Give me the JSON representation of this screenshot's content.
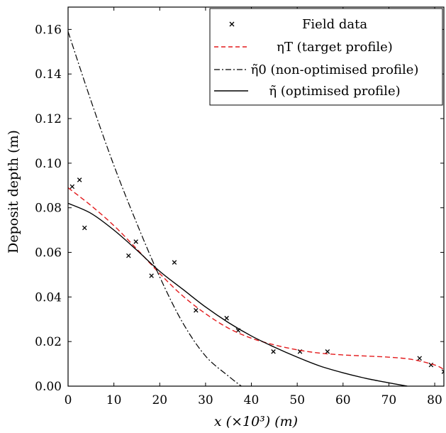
{
  "chart_data": {
    "type": "line",
    "xlabel": "x (×10³) (m)",
    "ylabel": "Deposit depth (m)",
    "xlim": [
      0,
      82
    ],
    "ylim": [
      0,
      0.17
    ],
    "x_ticks": [
      "0",
      "10",
      "20",
      "30",
      "40",
      "50",
      "60",
      "70",
      "80"
    ],
    "y_ticks": [
      "0.00",
      "0.02",
      "0.04",
      "0.06",
      "0.08",
      "0.10",
      "0.12",
      "0.14",
      "0.16"
    ],
    "grid": false,
    "legend_position": "top-right",
    "series": [
      {
        "name": "Field data",
        "style": "markers",
        "color": "#000000",
        "points": [
          [
            0.9,
            0.0895
          ],
          [
            2.5,
            0.0925
          ],
          [
            3.6,
            0.071
          ],
          [
            13.2,
            0.0585
          ],
          [
            14.8,
            0.0648
          ],
          [
            18.2,
            0.0495
          ],
          [
            23.2,
            0.0555
          ],
          [
            27.9,
            0.034
          ],
          [
            34.6,
            0.0305
          ],
          [
            37.1,
            0.025
          ],
          [
            44.8,
            0.0155
          ],
          [
            50.6,
            0.0155
          ],
          [
            56.6,
            0.0155
          ],
          [
            76.7,
            0.0125
          ],
          [
            79.2,
            0.0095
          ],
          [
            82,
            0.0065
          ]
        ]
      },
      {
        "name": "ηT (target profile)",
        "style": "dashed",
        "color": "#e31a1c",
        "points": [
          [
            0,
            0.089
          ],
          [
            5,
            0.081
          ],
          [
            10,
            0.072
          ],
          [
            15,
            0.0615
          ],
          [
            20,
            0.0505
          ],
          [
            25,
            0.0405
          ],
          [
            30,
            0.0325
          ],
          [
            35,
            0.026
          ],
          [
            40,
            0.0215
          ],
          [
            45,
            0.0185
          ],
          [
            50,
            0.0163
          ],
          [
            55,
            0.0148
          ],
          [
            60,
            0.014
          ],
          [
            65,
            0.0135
          ],
          [
            70,
            0.013
          ],
          [
            75,
            0.012
          ],
          [
            80,
            0.0095
          ],
          [
            82,
            0.0075
          ]
        ]
      },
      {
        "name": "η̃0 (non-optimised profile)",
        "style": "dashdot",
        "color": "#000000",
        "points": [
          [
            0,
            0.159
          ],
          [
            5,
            0.128
          ],
          [
            10,
            0.099
          ],
          [
            15,
            0.073
          ],
          [
            20,
            0.049
          ],
          [
            25,
            0.0285
          ],
          [
            30,
            0.0135
          ],
          [
            35,
            0.0045
          ],
          [
            37.8,
            0
          ]
        ]
      },
      {
        "name": "η̃ (optimised profile)",
        "style": "solid",
        "color": "#000000",
        "points": [
          [
            0,
            0.082
          ],
          [
            5,
            0.0775
          ],
          [
            10,
            0.07
          ],
          [
            15,
            0.061
          ],
          [
            20,
            0.0515
          ],
          [
            25,
            0.0435
          ],
          [
            30,
            0.0355
          ],
          [
            35,
            0.0285
          ],
          [
            40,
            0.0225
          ],
          [
            45,
            0.0175
          ],
          [
            50,
            0.013
          ],
          [
            55,
            0.009
          ],
          [
            60,
            0.006
          ],
          [
            65,
            0.0035
          ],
          [
            70,
            0.0015
          ],
          [
            74,
            0
          ]
        ]
      }
    ]
  },
  "legend": {
    "items": [
      {
        "marker": "x",
        "label": "Field data"
      },
      {
        "marker": "dashed-red",
        "label": "ηT (target profile)"
      },
      {
        "marker": "dashdot",
        "label": "η̃0 (non-optimised profile)"
      },
      {
        "marker": "solid",
        "label": "η̃ (optimised profile)"
      }
    ]
  }
}
